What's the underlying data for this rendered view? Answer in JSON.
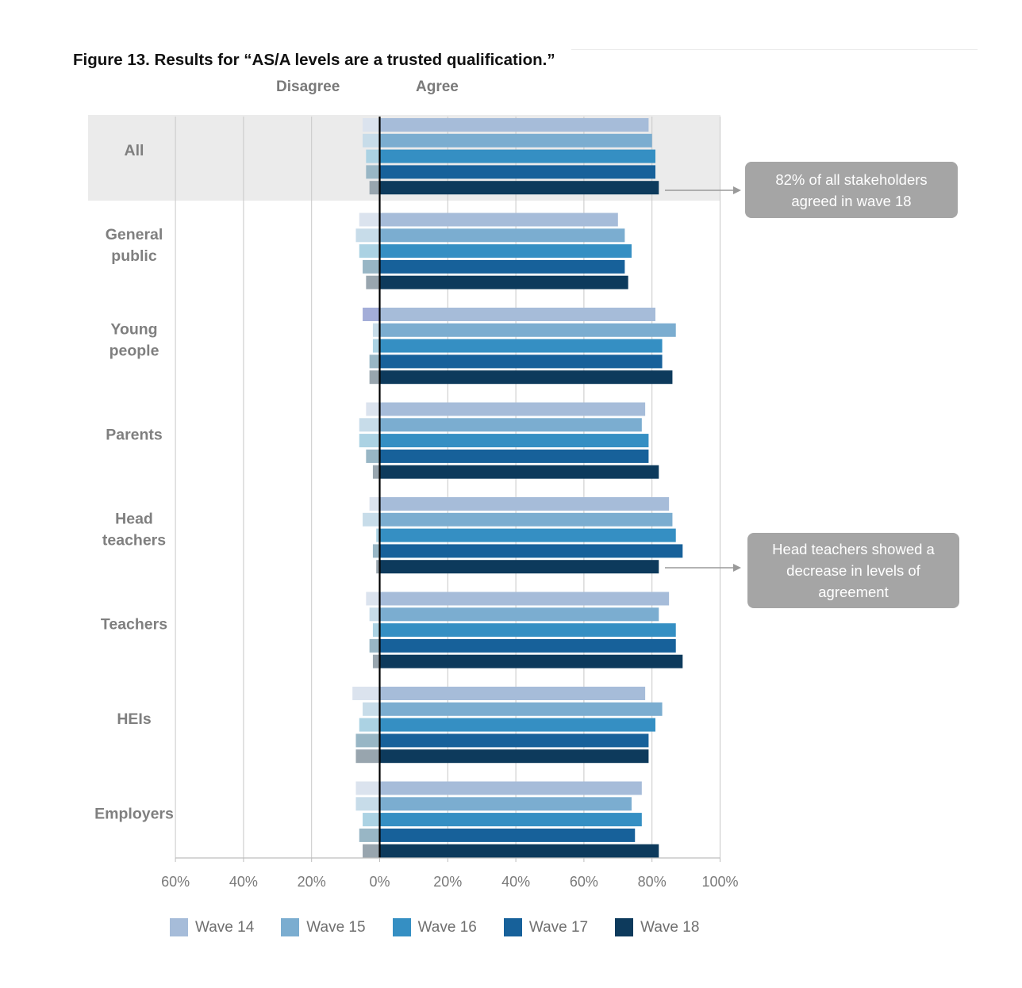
{
  "figure_title": "Figure 13. Results for “AS/A levels are a trusted qualification.”",
  "direction_labels": {
    "disagree": "Disagree",
    "agree": "Agree"
  },
  "callouts": [
    {
      "text_lines": [
        "82% of all stakeholders",
        "agreed in wave 18"
      ]
    },
    {
      "text_lines": [
        "Head teachers showed a",
        "decrease in levels of",
        "agreement"
      ]
    }
  ],
  "colors": {
    "agree": [
      "#a6bcd9",
      "#7badd0",
      "#358fc3",
      "#17619a",
      "#0d3a5c"
    ],
    "disagree": [
      "#dbe3ee",
      "#c7dce9",
      "#abd2e3",
      "#98b6c5",
      "#98a5ae"
    ],
    "disagree_young_people_wave14": "#a3add8",
    "highlight_band": "#ebebeb",
    "callout": "#a5a5a5"
  },
  "chart_data": {
    "type": "bar",
    "orientation": "horizontal",
    "diverging": true,
    "title": "Figure 13. Results for “AS/A levels are a trusted qualification.”",
    "categories": [
      "All",
      "General public",
      "Young people",
      "Parents",
      "Head teachers",
      "Teachers",
      "HEIs",
      "Employers"
    ],
    "category_label_lines": [
      [
        "All"
      ],
      [
        "General",
        "public"
      ],
      [
        "Young",
        "people"
      ],
      [
        "Parents"
      ],
      [
        "Head",
        "teachers"
      ],
      [
        "Teachers"
      ],
      [
        "HEIs"
      ],
      [
        "Employers"
      ]
    ],
    "x_ticks": [
      "60%",
      "40%",
      "20%",
      "0%",
      "20%",
      "40%",
      "60%",
      "80%",
      "100%"
    ],
    "xlim": [
      -60,
      100
    ],
    "highlighted_category": "All",
    "legend_position": "bottom",
    "series": [
      {
        "name": "Wave 14",
        "agree": [
          79,
          70,
          81,
          78,
          85,
          85,
          78,
          77
        ],
        "disagree": [
          5,
          6,
          5,
          4,
          3,
          4,
          8,
          7
        ]
      },
      {
        "name": "Wave 15",
        "agree": [
          80,
          72,
          87,
          77,
          86,
          82,
          83,
          74
        ],
        "disagree": [
          5,
          7,
          2,
          6,
          5,
          3,
          5,
          7
        ]
      },
      {
        "name": "Wave 16",
        "agree": [
          81,
          74,
          83,
          79,
          87,
          87,
          81,
          77
        ],
        "disagree": [
          4,
          6,
          2,
          6,
          1,
          2,
          6,
          5
        ]
      },
      {
        "name": "Wave 17",
        "agree": [
          81,
          72,
          83,
          79,
          89,
          87,
          79,
          75
        ],
        "disagree": [
          4,
          5,
          3,
          4,
          2,
          3,
          7,
          6
        ]
      },
      {
        "name": "Wave 18",
        "agree": [
          82,
          73,
          86,
          82,
          82,
          89,
          79,
          82
        ],
        "disagree": [
          3,
          4,
          3,
          2,
          1,
          2,
          7,
          5
        ]
      }
    ]
  }
}
